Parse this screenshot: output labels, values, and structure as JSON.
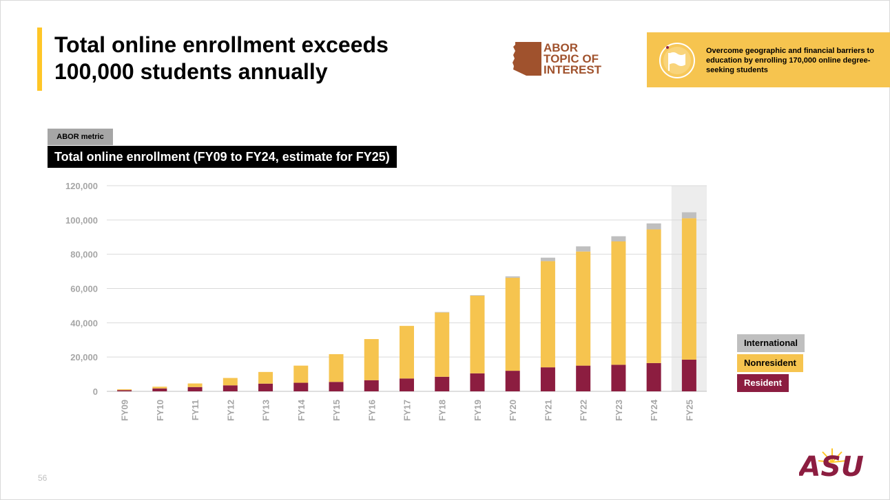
{
  "slide": {
    "title_line1": "Total online enrollment exceeds",
    "title_line2": "100,000 students annually",
    "page_number": "56"
  },
  "abor_badge": {
    "line1": "ABOR",
    "line2": "TOPIC OF",
    "line3": "INTEREST"
  },
  "goal": {
    "text": "Overcome geographic and financial barriers to education by enrolling 170,000 online degree-seeking students",
    "icon": "flag-icon"
  },
  "metric_tag": "ABOR metric",
  "logo_text": "ASU",
  "colors": {
    "resident": "#8c1d40",
    "nonresident": "#f6c44f",
    "international": "#bfbfbf",
    "gold": "#ffc627",
    "estimate_bg": "#ededed"
  },
  "chart_data": {
    "type": "bar",
    "stacked": true,
    "title": "Total online enrollment (FY09 to FY24, estimate for FY25)",
    "categories": [
      "FY09",
      "FY10",
      "FY11",
      "FY12",
      "FY13",
      "FY14",
      "FY15",
      "FY16",
      "FY17",
      "FY18",
      "FY19",
      "FY20",
      "FY21",
      "FY22",
      "FY23",
      "FY24",
      "FY25"
    ],
    "series": [
      {
        "name": "Resident",
        "values": [
          700,
          1700,
          2500,
          3500,
          4500,
          5000,
          5500,
          6500,
          7500,
          8500,
          10500,
          12000,
          14000,
          15000,
          15500,
          16500,
          18500
        ]
      },
      {
        "name": "Nonresident",
        "values": [
          500,
          1000,
          2100,
          4300,
          6800,
          10000,
          16200,
          24000,
          30700,
          37500,
          45300,
          54300,
          62000,
          66600,
          72000,
          78000,
          82500
        ]
      },
      {
        "name": "International",
        "values": [
          0,
          0,
          0,
          0,
          0,
          0,
          0,
          0,
          0,
          300,
          300,
          800,
          2000,
          3000,
          3000,
          3500,
          3500
        ]
      }
    ],
    "y_ticks": [
      "0",
      "20,000",
      "40,000",
      "60,000",
      "80,000",
      "100,000",
      "120,000"
    ],
    "ylim": [
      0,
      120000
    ],
    "highlighted_category": "FY25",
    "legend": [
      "International",
      "Nonresident",
      "Resident"
    ],
    "legend_position": "right"
  }
}
